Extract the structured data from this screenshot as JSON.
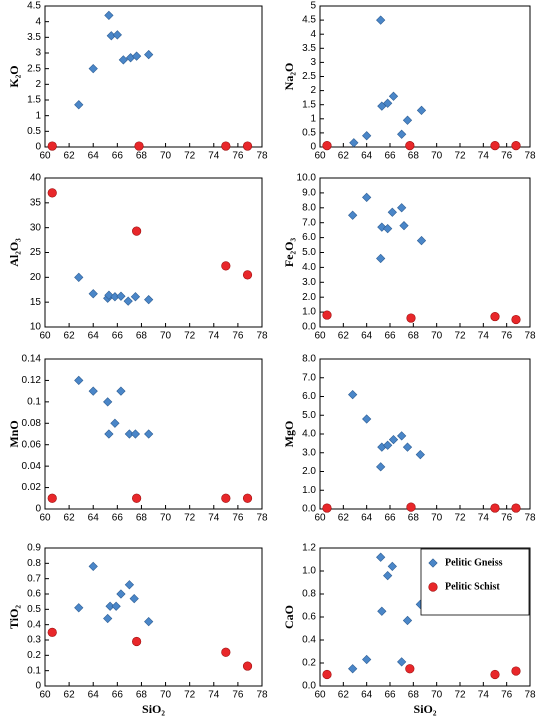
{
  "chart_data": [
    {
      "type": "scatter",
      "ylabel": "K₂O",
      "xlim": [
        60,
        78
      ],
      "xticks": [
        60,
        62,
        64,
        66,
        68,
        70,
        72,
        74,
        76,
        78
      ],
      "ylim": [
        0,
        4.5
      ],
      "yticks": [
        0,
        0.5,
        1,
        1.5,
        2,
        2.5,
        3,
        3.5,
        4,
        4.5
      ],
      "series": [
        {
          "color": "#4a86c8",
          "marker": "diamond",
          "x": [
            62.8,
            64,
            65.3,
            65.5,
            66,
            66.5,
            67.1,
            67.6,
            68.6
          ],
          "values": [
            1.35,
            2.5,
            4.2,
            3.55,
            3.58,
            2.78,
            2.85,
            2.9,
            2.95
          ]
        },
        {
          "color": "#e8272a",
          "marker": "circle",
          "x": [
            60.6,
            67.8,
            75,
            76.8
          ],
          "values": [
            0.03,
            0.03,
            0.03,
            0.03
          ]
        }
      ]
    },
    {
      "type": "scatter",
      "ylabel": "Na₂O",
      "xlim": [
        60,
        78
      ],
      "xticks": [
        60,
        62,
        64,
        66,
        68,
        70,
        72,
        74,
        76,
        78
      ],
      "ylim": [
        0,
        5
      ],
      "yticks": [
        0,
        0.5,
        1,
        1.5,
        2,
        2.5,
        3,
        3.5,
        4,
        4.5,
        5
      ],
      "series": [
        {
          "color": "#4a86c8",
          "marker": "diamond",
          "x": [
            62.9,
            64,
            65.2,
            65.3,
            65.8,
            66.3,
            67,
            67.5,
            68.7
          ],
          "values": [
            0.15,
            0.4,
            4.5,
            1.45,
            1.55,
            1.8,
            0.45,
            0.95,
            1.3
          ]
        },
        {
          "color": "#e8272a",
          "marker": "circle",
          "x": [
            60.6,
            67.7,
            75,
            76.8
          ],
          "values": [
            0.05,
            0.05,
            0.05,
            0.05
          ]
        }
      ]
    },
    {
      "type": "scatter",
      "ylabel": "Al₂O₃",
      "xlim": [
        60,
        78
      ],
      "xticks": [
        60,
        62,
        64,
        66,
        68,
        70,
        72,
        74,
        76,
        78
      ],
      "ylim": [
        10,
        40
      ],
      "yticks": [
        10,
        15,
        20,
        25,
        30,
        35,
        40
      ],
      "series": [
        {
          "color": "#4a86c8",
          "marker": "diamond",
          "x": [
            62.8,
            64,
            65.2,
            65.3,
            65.8,
            66.3,
            66.9,
            67.5,
            68.6
          ],
          "values": [
            20,
            16.7,
            15.8,
            16.4,
            16.1,
            16.2,
            15.2,
            16.1,
            15.5
          ]
        },
        {
          "color": "#e8272a",
          "marker": "circle",
          "x": [
            60.6,
            67.6,
            75,
            76.8
          ],
          "values": [
            37,
            29.3,
            22.3,
            20.5
          ]
        }
      ]
    },
    {
      "type": "scatter",
      "ylabel": "Fe₂O₃",
      "xlim": [
        60,
        78
      ],
      "xticks": [
        60,
        62,
        64,
        66,
        68,
        70,
        72,
        74,
        76,
        78
      ],
      "ylim": [
        0,
        10
      ],
      "yticks": [
        {
          "value": 0,
          "label": "0.0"
        },
        {
          "value": 1,
          "label": "1.0"
        },
        {
          "value": 2,
          "label": "2.0"
        },
        {
          "value": 3,
          "label": "3.0"
        },
        {
          "value": 4,
          "label": "4.0"
        },
        {
          "value": 5,
          "label": "5.0"
        },
        {
          "value": 6,
          "label": "6.0"
        },
        {
          "value": 7,
          "label": "7.0"
        },
        {
          "value": 8,
          "label": "8.0"
        },
        {
          "value": 9,
          "label": "9.0"
        },
        {
          "value": 10,
          "label": "10.0"
        }
      ],
      "series": [
        {
          "color": "#4a86c8",
          "marker": "diamond",
          "x": [
            62.8,
            64,
            65.2,
            65.3,
            65.8,
            66.2,
            67,
            67.2,
            68.7
          ],
          "values": [
            7.5,
            8.7,
            4.6,
            6.7,
            6.6,
            7.7,
            8,
            6.8,
            5.8
          ]
        },
        {
          "color": "#e8272a",
          "marker": "circle",
          "x": [
            60.6,
            67.8,
            75,
            76.8
          ],
          "values": [
            0.8,
            0.6,
            0.7,
            0.5
          ]
        }
      ]
    },
    {
      "type": "scatter",
      "ylabel": "MnO",
      "xlim": [
        60,
        78
      ],
      "xticks": [
        60,
        62,
        64,
        66,
        68,
        70,
        72,
        74,
        76,
        78
      ],
      "ylim": [
        0,
        0.14
      ],
      "yticks": [
        0,
        0.02,
        0.04,
        0.06,
        0.08,
        0.1,
        0.12,
        0.14
      ],
      "series": [
        {
          "color": "#4a86c8",
          "marker": "diamond",
          "x": [
            62.8,
            64,
            65.2,
            65.3,
            65.8,
            66.3,
            67,
            67.5,
            68.6
          ],
          "values": [
            0.12,
            0.11,
            0.1,
            0.07,
            0.08,
            0.11,
            0.07,
            0.07,
            0.07
          ]
        },
        {
          "color": "#e8272a",
          "marker": "circle",
          "x": [
            60.6,
            67.6,
            75,
            76.8
          ],
          "values": [
            0.01,
            0.01,
            0.01,
            0.01
          ]
        }
      ]
    },
    {
      "type": "scatter",
      "ylabel": "MgO",
      "xlim": [
        60,
        78
      ],
      "xticks": [
        60,
        62,
        64,
        66,
        68,
        70,
        72,
        74,
        76,
        78
      ],
      "ylim": [
        0,
        8
      ],
      "yticks": [
        {
          "value": 0,
          "label": "0.0"
        },
        {
          "value": 1,
          "label": "1.0"
        },
        {
          "value": 2,
          "label": "2.0"
        },
        {
          "value": 3,
          "label": "3.0"
        },
        {
          "value": 4,
          "label": "4.0"
        },
        {
          "value": 5,
          "label": "5.0"
        },
        {
          "value": 6,
          "label": "6.0"
        },
        {
          "value": 7,
          "label": "7.0"
        },
        {
          "value": 8,
          "label": "8.0"
        }
      ],
      "series": [
        {
          "color": "#4a86c8",
          "marker": "diamond",
          "x": [
            62.8,
            64,
            65.2,
            65.3,
            65.8,
            66.3,
            67,
            67.5,
            68.6
          ],
          "values": [
            6.1,
            4.8,
            2.25,
            3.3,
            3.4,
            3.7,
            3.9,
            3.3,
            2.9
          ]
        },
        {
          "color": "#e8272a",
          "marker": "circle",
          "x": [
            60.6,
            67.8,
            75,
            76.8
          ],
          "values": [
            0.05,
            0.1,
            0.05,
            0.05
          ]
        }
      ]
    },
    {
      "type": "scatter",
      "ylabel": "TiO₂",
      "xlabel": "SiO₂",
      "xlim": [
        60,
        78
      ],
      "xticks": [
        60,
        62,
        64,
        66,
        68,
        70,
        72,
        74,
        76,
        78
      ],
      "ylim": [
        0,
        0.9
      ],
      "yticks": [
        0,
        0.1,
        0.2,
        0.3,
        0.4,
        0.5,
        0.6,
        0.7,
        0.8,
        0.9
      ],
      "series": [
        {
          "color": "#4a86c8",
          "marker": "diamond",
          "x": [
            62.8,
            64,
            65.2,
            65.4,
            65.9,
            66.3,
            67,
            67.4,
            68.6
          ],
          "values": [
            0.51,
            0.78,
            0.44,
            0.52,
            0.52,
            0.6,
            0.66,
            0.57,
            0.42
          ]
        },
        {
          "color": "#e8272a",
          "marker": "circle",
          "x": [
            60.6,
            67.6,
            75,
            76.8
          ],
          "values": [
            0.35,
            0.29,
            0.22,
            0.13
          ]
        }
      ]
    },
    {
      "type": "scatter",
      "ylabel": "CaO",
      "xlabel": "SiO₂",
      "legend": "upper right",
      "xlim": [
        60,
        78
      ],
      "xticks": [
        60,
        62,
        64,
        66,
        68,
        70,
        72,
        74,
        76,
        78
      ],
      "ylim": [
        0,
        1.2
      ],
      "yticks": [
        {
          "value": 0,
          "label": "0.0"
        },
        {
          "value": 0.2,
          "label": "0.2"
        },
        {
          "value": 0.4,
          "label": "0.4"
        },
        {
          "value": 0.6,
          "label": "0.6"
        },
        {
          "value": 0.8,
          "label": "0.8"
        },
        {
          "value": 1,
          "label": "1.0"
        },
        {
          "value": 1.2,
          "label": "1.2"
        }
      ],
      "series": [
        {
          "name": "Pelitic Gneiss",
          "color": "#4a86c8",
          "marker": "diamond",
          "x": [
            62.8,
            64,
            65.2,
            65.3,
            65.8,
            66.2,
            67,
            67.5,
            68.6
          ],
          "values": [
            0.15,
            0.23,
            1.12,
            0.65,
            0.96,
            1.04,
            0.21,
            0.57,
            0.71
          ]
        },
        {
          "name": "Pelitic Schist",
          "color": "#e8272a",
          "marker": "circle",
          "x": [
            60.6,
            67.7,
            75,
            76.8
          ],
          "values": [
            0.1,
            0.15,
            0.1,
            0.13
          ]
        }
      ]
    }
  ]
}
